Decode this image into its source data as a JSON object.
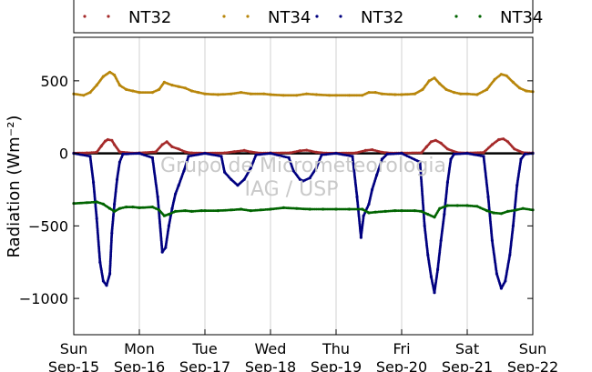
{
  "chart_data": {
    "type": "scatter",
    "ylabel": "Radiation (Wm⁻²)",
    "ylim": [
      -1250,
      800
    ],
    "yticks": [
      500,
      0,
      -500,
      -1000
    ],
    "ytick_labels": [
      "500",
      "0",
      "−500",
      "−1000"
    ],
    "xlim": [
      0,
      7
    ],
    "xticks": [
      {
        "day": "Sun",
        "date": "Sep-15"
      },
      {
        "day": "Mon",
        "date": "Sep-16"
      },
      {
        "day": "Tue",
        "date": "Sep-17"
      },
      {
        "day": "Wed",
        "date": "Sep-18"
      },
      {
        "day": "Thu",
        "date": "Sep-19"
      },
      {
        "day": "Fri",
        "date": "Sep-20"
      },
      {
        "day": "Sat",
        "date": "Sep-21"
      },
      {
        "day": "Sun",
        "date": "Sep-22"
      }
    ],
    "grid": "vertical",
    "legend_position": "top",
    "watermark": [
      "Grupo de Micrometeorologia",
      "IAG / USP"
    ],
    "series": [
      {
        "name": "NT32",
        "color": "#a52a2a",
        "points": [
          [
            0.0,
            2
          ],
          [
            0.2,
            3
          ],
          [
            0.35,
            8
          ],
          [
            0.42,
            50
          ],
          [
            0.48,
            85
          ],
          [
            0.52,
            95
          ],
          [
            0.58,
            90
          ],
          [
            0.62,
            60
          ],
          [
            0.7,
            10
          ],
          [
            0.9,
            2
          ],
          [
            1.0,
            3
          ],
          [
            1.25,
            10
          ],
          [
            1.35,
            60
          ],
          [
            1.42,
            80
          ],
          [
            1.5,
            45
          ],
          [
            1.6,
            30
          ],
          [
            1.7,
            10
          ],
          [
            1.8,
            3
          ],
          [
            2.0,
            2
          ],
          [
            2.3,
            3
          ],
          [
            2.45,
            12
          ],
          [
            2.6,
            20
          ],
          [
            2.7,
            10
          ],
          [
            2.85,
            2
          ],
          [
            3.0,
            3
          ],
          [
            3.3,
            4
          ],
          [
            3.45,
            18
          ],
          [
            3.55,
            22
          ],
          [
            3.7,
            8
          ],
          [
            3.85,
            2
          ],
          [
            4.0,
            2
          ],
          [
            4.3,
            3
          ],
          [
            4.45,
            20
          ],
          [
            4.55,
            25
          ],
          [
            4.7,
            8
          ],
          [
            4.85,
            2
          ],
          [
            5.0,
            3
          ],
          [
            5.3,
            4
          ],
          [
            5.38,
            45
          ],
          [
            5.45,
            80
          ],
          [
            5.52,
            90
          ],
          [
            5.6,
            70
          ],
          [
            5.7,
            30
          ],
          [
            5.85,
            5
          ],
          [
            6.0,
            3
          ],
          [
            6.25,
            6
          ],
          [
            6.38,
            60
          ],
          [
            6.48,
            95
          ],
          [
            6.55,
            100
          ],
          [
            6.62,
            80
          ],
          [
            6.72,
            30
          ],
          [
            6.85,
            5
          ],
          [
            7.0,
            3
          ]
        ]
      },
      {
        "name": "NT34",
        "color": "#b8860b",
        "points": [
          [
            0.0,
            410
          ],
          [
            0.15,
            400
          ],
          [
            0.25,
            420
          ],
          [
            0.35,
            470
          ],
          [
            0.45,
            530
          ],
          [
            0.55,
            560
          ],
          [
            0.62,
            540
          ],
          [
            0.7,
            470
          ],
          [
            0.8,
            440
          ],
          [
            0.9,
            430
          ],
          [
            1.0,
            420
          ],
          [
            1.2,
            420
          ],
          [
            1.3,
            440
          ],
          [
            1.38,
            490
          ],
          [
            1.5,
            470
          ],
          [
            1.6,
            460
          ],
          [
            1.7,
            450
          ],
          [
            1.8,
            430
          ],
          [
            1.9,
            420
          ],
          [
            2.0,
            410
          ],
          [
            2.2,
            405
          ],
          [
            2.4,
            410
          ],
          [
            2.55,
            420
          ],
          [
            2.7,
            410
          ],
          [
            2.9,
            410
          ],
          [
            3.0,
            405
          ],
          [
            3.2,
            400
          ],
          [
            3.4,
            400
          ],
          [
            3.55,
            410
          ],
          [
            3.7,
            405
          ],
          [
            3.9,
            400
          ],
          [
            4.0,
            400
          ],
          [
            4.2,
            400
          ],
          [
            4.4,
            400
          ],
          [
            4.5,
            420
          ],
          [
            4.6,
            420
          ],
          [
            4.7,
            410
          ],
          [
            4.9,
            405
          ],
          [
            5.0,
            405
          ],
          [
            5.2,
            410
          ],
          [
            5.32,
            440
          ],
          [
            5.42,
            500
          ],
          [
            5.5,
            520
          ],
          [
            5.58,
            480
          ],
          [
            5.68,
            440
          ],
          [
            5.8,
            420
          ],
          [
            5.9,
            410
          ],
          [
            6.0,
            410
          ],
          [
            6.15,
            405
          ],
          [
            6.3,
            440
          ],
          [
            6.42,
            510
          ],
          [
            6.52,
            545
          ],
          [
            6.6,
            535
          ],
          [
            6.7,
            490
          ],
          [
            6.8,
            450
          ],
          [
            6.9,
            430
          ],
          [
            7.0,
            425
          ]
        ]
      },
      {
        "name": "NT32",
        "color": "#000080",
        "points": [
          [
            0.0,
            0
          ],
          [
            0.25,
            -20
          ],
          [
            0.3,
            -200
          ],
          [
            0.35,
            -450
          ],
          [
            0.4,
            -750
          ],
          [
            0.45,
            -880
          ],
          [
            0.5,
            -910
          ],
          [
            0.55,
            -830
          ],
          [
            0.58,
            -550
          ],
          [
            0.62,
            -350
          ],
          [
            0.66,
            -180
          ],
          [
            0.7,
            -60
          ],
          [
            0.75,
            -5
          ],
          [
            1.0,
            0
          ],
          [
            1.2,
            -30
          ],
          [
            1.28,
            -300
          ],
          [
            1.35,
            -680
          ],
          [
            1.4,
            -650
          ],
          [
            1.45,
            -500
          ],
          [
            1.5,
            -380
          ],
          [
            1.55,
            -280
          ],
          [
            1.6,
            -220
          ],
          [
            1.68,
            -120
          ],
          [
            1.75,
            -20
          ],
          [
            2.0,
            0
          ],
          [
            2.25,
            -20
          ],
          [
            2.3,
            -130
          ],
          [
            2.4,
            -180
          ],
          [
            2.5,
            -220
          ],
          [
            2.6,
            -180
          ],
          [
            2.7,
            -100
          ],
          [
            2.78,
            -10
          ],
          [
            3.0,
            0
          ],
          [
            3.28,
            -30
          ],
          [
            3.35,
            -120
          ],
          [
            3.45,
            -180
          ],
          [
            3.5,
            -190
          ],
          [
            3.6,
            -170
          ],
          [
            3.7,
            -100
          ],
          [
            3.78,
            -10
          ],
          [
            4.0,
            0
          ],
          [
            4.25,
            -20
          ],
          [
            4.32,
            -300
          ],
          [
            4.38,
            -580
          ],
          [
            4.42,
            -430
          ],
          [
            4.5,
            -350
          ],
          [
            4.55,
            -250
          ],
          [
            4.62,
            -150
          ],
          [
            4.7,
            -40
          ],
          [
            4.78,
            -5
          ],
          [
            5.0,
            0
          ],
          [
            5.28,
            -60
          ],
          [
            5.35,
            -500
          ],
          [
            5.4,
            -700
          ],
          [
            5.45,
            -850
          ],
          [
            5.5,
            -960
          ],
          [
            5.55,
            -800
          ],
          [
            5.6,
            -600
          ],
          [
            5.65,
            -420
          ],
          [
            5.7,
            -200
          ],
          [
            5.75,
            -40
          ],
          [
            5.8,
            -5
          ],
          [
            6.0,
            0
          ],
          [
            6.25,
            -20
          ],
          [
            6.32,
            -300
          ],
          [
            6.38,
            -600
          ],
          [
            6.45,
            -830
          ],
          [
            6.52,
            -930
          ],
          [
            6.58,
            -880
          ],
          [
            6.65,
            -700
          ],
          [
            6.7,
            -500
          ],
          [
            6.76,
            -220
          ],
          [
            6.82,
            -40
          ],
          [
            6.88,
            -5
          ],
          [
            7.0,
            0
          ]
        ]
      },
      {
        "name": "NT34",
        "color": "#006400",
        "points": [
          [
            0.0,
            -345
          ],
          [
            0.2,
            -340
          ],
          [
            0.35,
            -335
          ],
          [
            0.45,
            -350
          ],
          [
            0.55,
            -380
          ],
          [
            0.62,
            -400
          ],
          [
            0.7,
            -380
          ],
          [
            0.8,
            -370
          ],
          [
            0.9,
            -370
          ],
          [
            1.0,
            -375
          ],
          [
            1.2,
            -370
          ],
          [
            1.3,
            -390
          ],
          [
            1.38,
            -430
          ],
          [
            1.45,
            -420
          ],
          [
            1.55,
            -400
          ],
          [
            1.7,
            -395
          ],
          [
            1.8,
            -400
          ],
          [
            1.95,
            -395
          ],
          [
            2.0,
            -395
          ],
          [
            2.2,
            -395
          ],
          [
            2.4,
            -390
          ],
          [
            2.55,
            -385
          ],
          [
            2.7,
            -395
          ],
          [
            2.85,
            -390
          ],
          [
            3.0,
            -385
          ],
          [
            3.2,
            -375
          ],
          [
            3.4,
            -380
          ],
          [
            3.6,
            -385
          ],
          [
            3.8,
            -385
          ],
          [
            4.0,
            -385
          ],
          [
            4.2,
            -385
          ],
          [
            4.4,
            -385
          ],
          [
            4.5,
            -410
          ],
          [
            4.6,
            -405
          ],
          [
            4.75,
            -400
          ],
          [
            4.9,
            -395
          ],
          [
            5.0,
            -395
          ],
          [
            5.2,
            -395
          ],
          [
            5.3,
            -400
          ],
          [
            5.4,
            -420
          ],
          [
            5.5,
            -440
          ],
          [
            5.58,
            -380
          ],
          [
            5.7,
            -360
          ],
          [
            5.85,
            -360
          ],
          [
            6.0,
            -360
          ],
          [
            6.15,
            -365
          ],
          [
            6.3,
            -395
          ],
          [
            6.4,
            -410
          ],
          [
            6.52,
            -415
          ],
          [
            6.62,
            -400
          ],
          [
            6.75,
            -390
          ],
          [
            6.85,
            -380
          ],
          [
            7.0,
            -390
          ]
        ]
      }
    ]
  }
}
